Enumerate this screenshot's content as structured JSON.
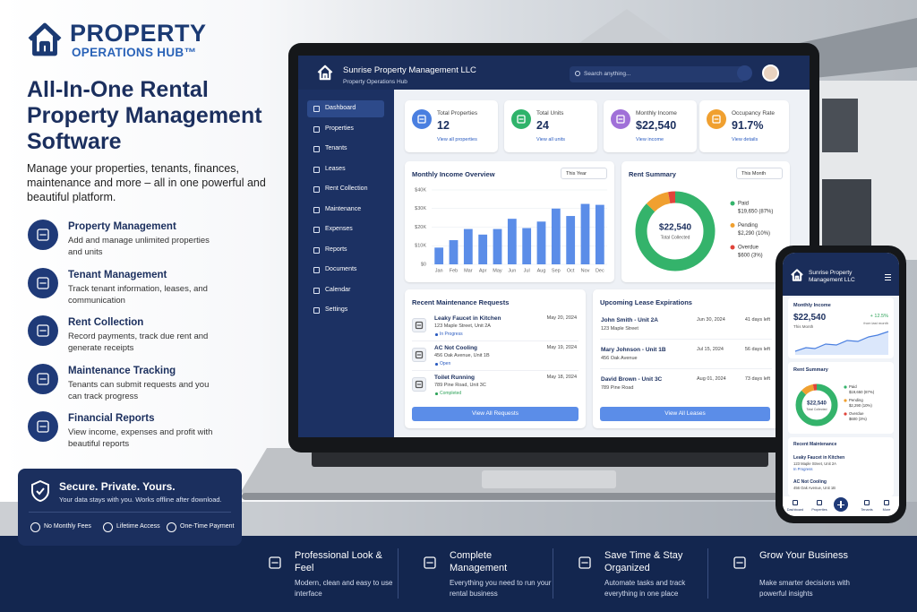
{
  "brand": {
    "name": "PROPERTY",
    "sub": "OPERATIONS HUB™"
  },
  "headline": "All-In-One Rental Property Management Software",
  "tagline": "Manage your properties, tenants, finances, maintenance and more – all in one powerful and beautiful platform.",
  "features": [
    {
      "title": "Property Management",
      "text": "Add and manage unlimited properties and units"
    },
    {
      "title": "Tenant Management",
      "text": "Track tenant information, leases, and communication"
    },
    {
      "title": "Rent Collection",
      "text": "Record payments, track due rent and generate receipts"
    },
    {
      "title": "Maintenance Tracking",
      "text": "Tenants can submit requests and you can track progress"
    },
    {
      "title": "Financial Reports",
      "text": "View income, expenses and profit with beautiful reports"
    }
  ],
  "secure": {
    "title": "Secure. Private. Yours.",
    "text": "Your data stays with you. Works offline after download.",
    "badges": [
      "No Monthly Fees",
      "Lifetime Access",
      "One-Time Payment"
    ]
  },
  "app": {
    "company": "Sunrise Property Management LLC",
    "product": "Property Operations Hub",
    "search": "Search anything...",
    "nav": [
      "Dashboard",
      "Properties",
      "Tenants",
      "Leases",
      "Rent Collection",
      "Maintenance",
      "Expenses",
      "Reports",
      "Documents",
      "Calendar",
      "Settings"
    ],
    "stats": [
      {
        "label": "Total Properties",
        "value": "12",
        "link": "View all properties",
        "color": "#4a7fe0"
      },
      {
        "label": "Total Units",
        "value": "24",
        "link": "View all units",
        "color": "#2fb36a"
      },
      {
        "label": "Monthly Income",
        "value": "$22,540",
        "link": "View income",
        "color": "#a070d8"
      },
      {
        "label": "Occupancy Rate",
        "value": "91.7%",
        "link": "View details",
        "color": "#f0a030"
      }
    ],
    "income_chart": {
      "type": "bar",
      "title": "Monthly Income Overview",
      "filter": "This Year",
      "categories": [
        "Jan",
        "Feb",
        "Mar",
        "Apr",
        "May",
        "Jun",
        "Jul",
        "Aug",
        "Sep",
        "Oct",
        "Nov",
        "Dec"
      ],
      "values": [
        9000,
        13000,
        19000,
        16000,
        19000,
        24500,
        19500,
        23000,
        30000,
        26000,
        32500,
        32000
      ],
      "color": "#5b8de8",
      "ylim": [
        0,
        40000
      ],
      "yticks": [
        {
          "value": 0,
          "label": "$0"
        },
        {
          "value": 10000,
          "label": "$10K"
        },
        {
          "value": 20000,
          "label": "$20K"
        },
        {
          "value": 30000,
          "label": "$30K"
        },
        {
          "value": 40000,
          "label": "$40K"
        }
      ],
      "grid": true
    },
    "rent_summary": {
      "type": "donut",
      "title": "Rent Summary",
      "filter": "This Month",
      "total": "$22,540",
      "total_label": "Total Collected",
      "series": [
        {
          "name": "Paid",
          "value": 87,
          "value_label": "$19,650 (87%)",
          "color": "#34b36b"
        },
        {
          "name": "Pending",
          "value": 10,
          "value_label": "$2,290 (10%)",
          "color": "#f0a030"
        },
        {
          "name": "Overdue",
          "value": 3,
          "value_label": "$600 (3%)",
          "color": "#e0443a"
        }
      ]
    },
    "maintenance": {
      "title": "Recent Maintenance Requests",
      "items": [
        {
          "title": "Leaky Faucet in Kitchen",
          "address": "123 Maple Street, Unit 2A",
          "date": "May 20, 2024",
          "status": "In Progress"
        },
        {
          "title": "AC Not Cooling",
          "address": "456 Oak Avenue, Unit 1B",
          "date": "May 19, 2024",
          "status": "Open"
        },
        {
          "title": "Toilet Running",
          "address": "789 Pine Road, Unit 3C",
          "date": "May 18, 2024",
          "status": "Completed"
        }
      ],
      "button": "View All Requests"
    },
    "leases": {
      "title": "Upcoming Lease Expirations",
      "items": [
        {
          "name": "John Smith - Unit 2A",
          "address": "123 Maple Street",
          "date": "Jun 30, 2024",
          "days": "41 days left"
        },
        {
          "name": "Mary Johnson - Unit 1B",
          "address": "456 Oak Avenue",
          "date": "Jul 15, 2024",
          "days": "56 days left"
        },
        {
          "name": "David Brown - Unit 3C",
          "address": "789 Pine Road",
          "date": "Aug 01, 2024",
          "days": "73 days left"
        }
      ],
      "button": "View All Leases"
    }
  },
  "phone": {
    "company": "Sunrise Property Management LLC",
    "income_title": "Monthly Income",
    "income": "$22,540",
    "period": "This Month",
    "change": "+ 12.5%",
    "change_note": "from last month",
    "rent_title": "Rent Summary",
    "maintenance_title": "Recent Maintenance",
    "tabs": [
      "Dashboard",
      "Properties",
      "Tenants",
      "More"
    ]
  },
  "benefits": [
    {
      "title": "Professional Look & Feel",
      "text": "Modern, clean and easy to use interface"
    },
    {
      "title": "Complete Management",
      "text": "Everything you need to run your rental business"
    },
    {
      "title": "Save Time & Stay Organized",
      "text": "Automate tasks and track everything in one place"
    },
    {
      "title": "Grow Your Business",
      "text": "Make smarter decisions with powerful insights"
    }
  ]
}
